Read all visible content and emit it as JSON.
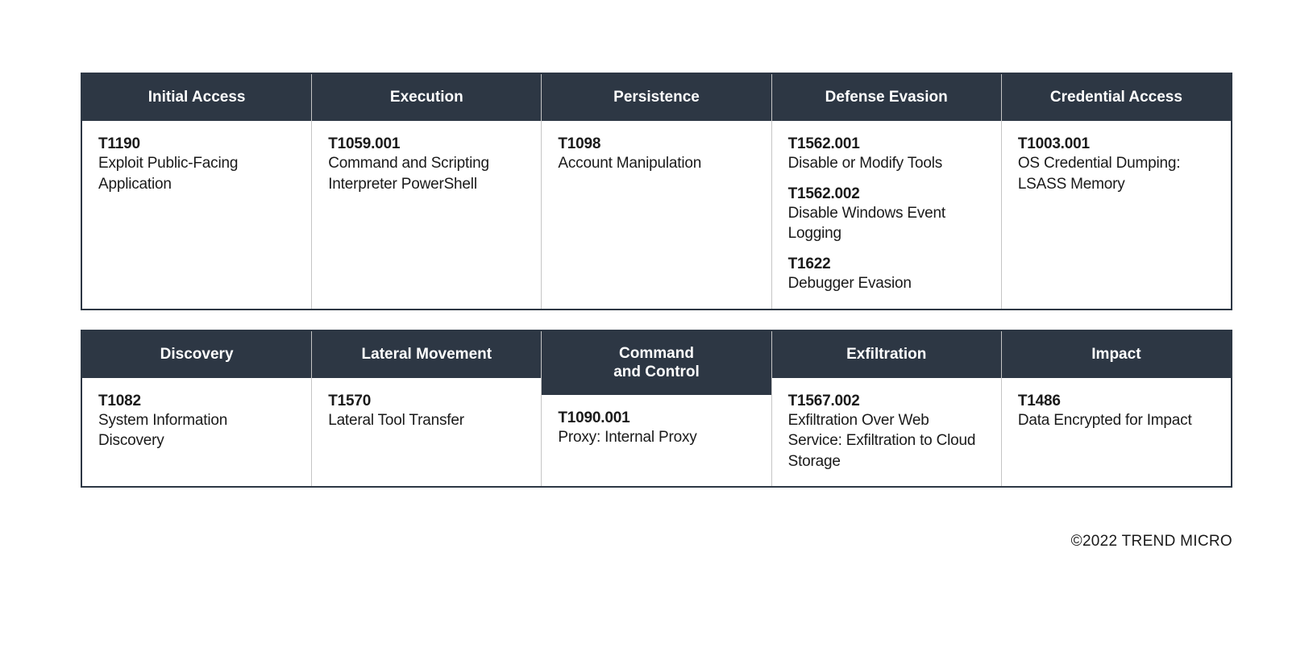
{
  "colors": {
    "header_bg": "#2d3744",
    "header_text": "#ffffff",
    "body_bg": "#ffffff",
    "body_text": "#1a1a1a",
    "border_outer": "#2d3744",
    "border_inner": "#c5c5c5"
  },
  "typography": {
    "header_fontsize": 19,
    "header_fontweight": 700,
    "body_fontsize": 19,
    "id_fontweight": 700,
    "desc_fontweight": 400
  },
  "tables": [
    {
      "columns": [
        {
          "header": "Initial Access",
          "entries": [
            {
              "id": "T1190",
              "desc": "Exploit Public-Facing Application"
            }
          ]
        },
        {
          "header": "Execution",
          "entries": [
            {
              "id": "T1059.001",
              "desc": "Command and Scripting Interpreter PowerShell"
            }
          ]
        },
        {
          "header": "Persistence",
          "entries": [
            {
              "id": "T1098",
              "desc": "Account Manipulation"
            }
          ]
        },
        {
          "header": "Defense Evasion",
          "entries": [
            {
              "id": "T1562.001",
              "desc": "Disable or Modify Tools"
            },
            {
              "id": "T1562.002",
              "desc": "Disable Windows Event Logging"
            },
            {
              "id": "T1622",
              "desc": "Debugger Evasion"
            }
          ]
        },
        {
          "header": "Credential Access",
          "entries": [
            {
              "id": "T1003.001",
              "desc": "OS Credential Dumping: LSASS Memory"
            }
          ]
        }
      ]
    },
    {
      "columns": [
        {
          "header": "Discovery",
          "entries": [
            {
              "id": "T1082",
              "desc": "System Information Discovery"
            }
          ]
        },
        {
          "header": "Lateral Movement",
          "entries": [
            {
              "id": "T1570",
              "desc": "Lateral Tool Transfer"
            }
          ]
        },
        {
          "header": "Command\nand Control",
          "entries": [
            {
              "id": "T1090.001",
              "desc": "Proxy: Internal Proxy"
            }
          ]
        },
        {
          "header": "Exfiltration",
          "entries": [
            {
              "id": "T1567.002",
              "desc": "Exfiltration Over Web Service: Exfiltration to Cloud Storage"
            }
          ]
        },
        {
          "header": "Impact",
          "entries": [
            {
              "id": "T1486",
              "desc": "Data Encrypted for Impact"
            }
          ]
        }
      ]
    }
  ],
  "copyright": "©2022 TREND MICRO"
}
